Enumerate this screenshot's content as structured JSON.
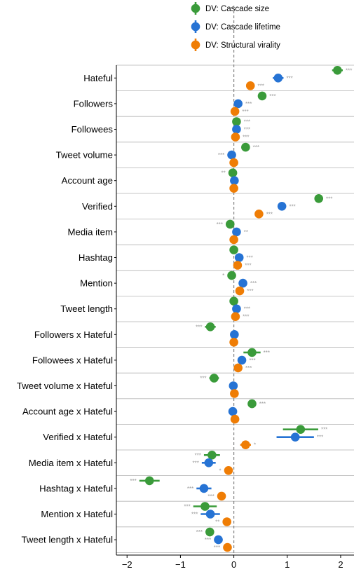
{
  "chart_data": {
    "type": "forest",
    "title": "",
    "xlabel": "",
    "ylabel": "",
    "xlim": [
      -2.2,
      2.25
    ],
    "xticks": [
      -2,
      -1,
      0,
      1,
      2
    ],
    "xtick_labels": [
      "−2",
      "−1",
      "0",
      "1",
      "2"
    ],
    "reference_line_x": 0,
    "grid": "horizontal separators between categories",
    "legend_position": "top",
    "categories": [
      "Hateful",
      "Followers",
      "Followees",
      "Tweet volume",
      "Account age",
      "Verified",
      "Media item",
      "Hashtag",
      "Mention",
      "Tweet length",
      "Followers x Hateful",
      "Followees x Hateful",
      "Tweet volume x Hateful",
      "Account age x Hateful",
      "Verified x Hateful",
      "Media item x Hateful",
      "Hashtag x Hateful",
      "Mention x Hateful",
      "Tweet length x Hateful"
    ],
    "series": [
      {
        "name": "DV: Cascade size",
        "color": "#3a9b3a",
        "estimates": [
          1.94,
          0.53,
          0.05,
          0.22,
          -0.02,
          1.59,
          -0.07,
          0.0,
          -0.04,
          0.0,
          -0.44,
          0.34,
          -0.37,
          0.34,
          1.25,
          -0.41,
          -1.58,
          -0.54,
          -0.45
        ],
        "ci_low": [
          1.84,
          0.48,
          0.01,
          0.17,
          -0.07,
          1.51,
          -0.12,
          -0.04,
          -0.09,
          -0.04,
          -0.54,
          0.18,
          -0.46,
          0.29,
          0.92,
          -0.56,
          -1.77,
          -0.76,
          -0.51
        ],
        "ci_high": [
          2.04,
          0.58,
          0.09,
          0.27,
          0.03,
          1.67,
          -0.02,
          0.04,
          0.01,
          0.04,
          -0.34,
          0.5,
          -0.28,
          0.39,
          1.58,
          -0.26,
          -1.39,
          -0.32,
          -0.39
        ],
        "significance": [
          "***",
          "***",
          "***",
          "***",
          "**",
          "***",
          "***",
          "",
          "*",
          "",
          "***",
          "***",
          "***",
          "***",
          "***",
          "***",
          "***",
          "***",
          "***"
        ]
      },
      {
        "name": "DV: Cascade lifetime",
        "color": "#2673d4",
        "estimates": [
          0.83,
          0.08,
          0.05,
          -0.04,
          0.01,
          0.9,
          0.05,
          0.1,
          0.17,
          0.05,
          0.01,
          0.15,
          -0.01,
          -0.02,
          1.15,
          -0.47,
          -0.56,
          -0.44,
          -0.29
        ],
        "ci_low": [
          0.73,
          0.04,
          0.01,
          -0.09,
          -0.03,
          0.84,
          0.01,
          0.05,
          0.1,
          0.01,
          -0.03,
          0.08,
          -0.05,
          -0.06,
          0.8,
          -0.6,
          -0.7,
          -0.62,
          -0.37
        ],
        "ci_high": [
          0.93,
          0.12,
          0.09,
          0.01,
          0.05,
          0.96,
          0.09,
          0.15,
          0.24,
          0.09,
          0.05,
          0.22,
          0.03,
          0.02,
          1.5,
          -0.34,
          -0.42,
          -0.26,
          -0.21
        ],
        "significance": [
          "***",
          "***",
          "***",
          "***",
          "",
          "***",
          "**",
          "***",
          "***",
          "***",
          "",
          "***",
          "",
          "",
          "***",
          "***",
          "***",
          "***",
          "***"
        ]
      },
      {
        "name": "DV: Structural virality",
        "color": "#ef7d05",
        "estimates": [
          0.31,
          0.02,
          0.03,
          0.0,
          0.0,
          0.47,
          0.0,
          0.07,
          0.11,
          0.03,
          0.0,
          0.08,
          0.01,
          0.02,
          0.22,
          -0.1,
          -0.23,
          -0.13,
          -0.12
        ],
        "ci_low": [
          0.26,
          -0.02,
          -0.01,
          -0.04,
          -0.04,
          0.42,
          -0.04,
          0.03,
          0.06,
          -0.01,
          -0.04,
          0.02,
          -0.03,
          -0.02,
          0.12,
          -0.15,
          -0.3,
          -0.2,
          -0.17
        ],
        "ci_high": [
          0.36,
          0.06,
          0.07,
          0.04,
          0.04,
          0.52,
          0.04,
          0.11,
          0.16,
          0.07,
          0.04,
          0.14,
          0.05,
          0.06,
          0.32,
          -0.05,
          -0.16,
          -0.06,
          -0.07
        ],
        "significance": [
          "***",
          "***",
          "***",
          "",
          "",
          "***",
          "",
          "***",
          "***",
          "***",
          "",
          "***",
          "",
          "",
          "*",
          "*",
          "***",
          "**",
          "***"
        ]
      }
    ]
  }
}
